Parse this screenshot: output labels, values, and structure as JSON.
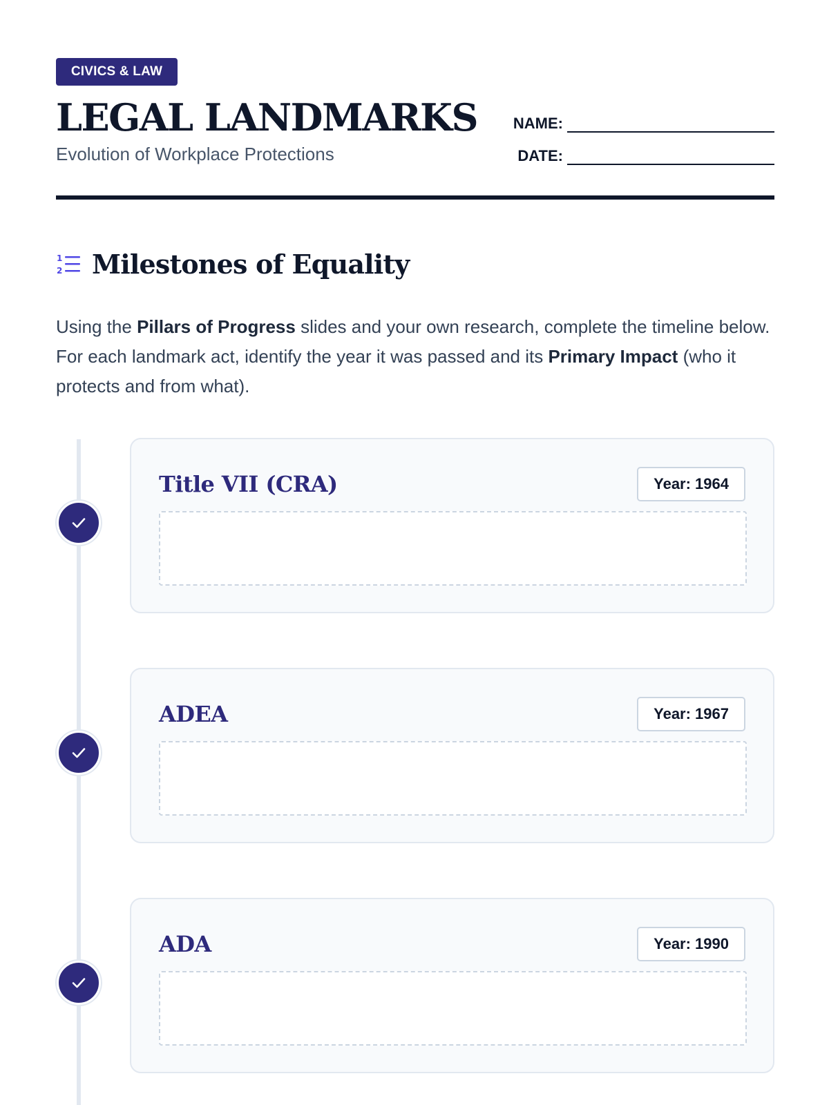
{
  "header": {
    "tag": "CIVICS & LAW",
    "title": "LEGAL LANDMARKS",
    "subtitle": "Evolution of Workplace Protections",
    "name_label": "NAME:",
    "date_label": "DATE:"
  },
  "section": {
    "icon": "numbered-list-icon",
    "title": "Milestones of Equality"
  },
  "instructions": {
    "p1": "Using the ",
    "b1": "Pillars of Progress",
    "p2": " slides and your own research, complete the timeline below. For each landmark act, identify the year it was passed and its ",
    "b2": "Primary Impact",
    "p3": " (who it protects and from what)."
  },
  "timeline": [
    {
      "title": "Title VII (CRA)",
      "year": "Year: 1964",
      "icon": "check-icon"
    },
    {
      "title": "ADEA",
      "year": "Year: 1967",
      "icon": "check-icon"
    },
    {
      "title": "ADA",
      "year": "Year: 1990",
      "icon": "check-icon"
    }
  ],
  "colors": {
    "accent": "#2e2a7c",
    "text": "#0f172a",
    "muted": "#475569",
    "card_bg": "#f8fafc",
    "border": "#e2e8f0"
  }
}
